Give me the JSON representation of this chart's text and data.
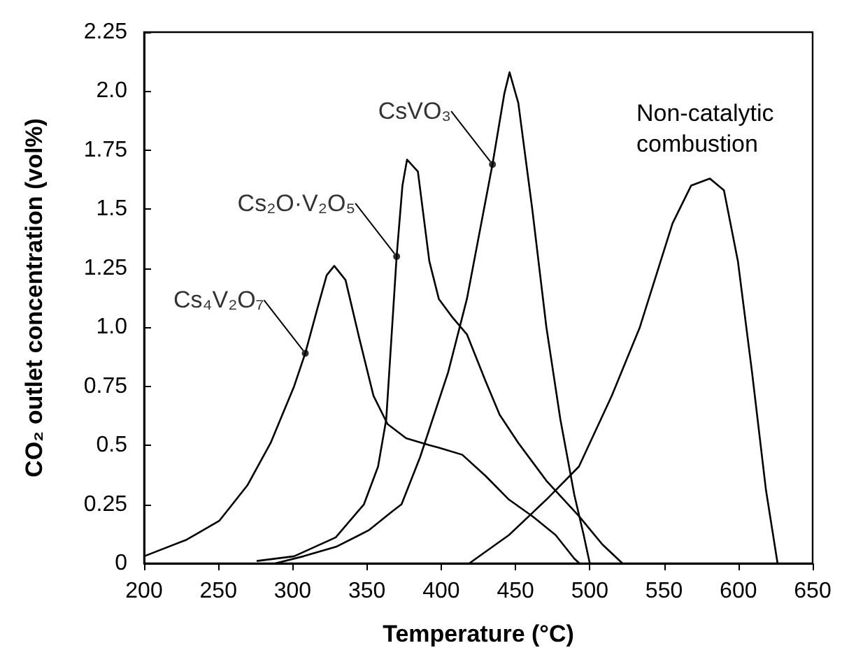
{
  "chart_data": {
    "type": "line",
    "xlabel": "Temperature (°C)",
    "ylabel": "CO₂ outlet concentration (vol%)",
    "xlim": [
      200,
      650
    ],
    "xticks": [
      200,
      250,
      300,
      350,
      400,
      450,
      500,
      550,
      600,
      650
    ],
    "ylim": [
      0,
      2.25
    ],
    "yticks": [
      0,
      0.25,
      0.5,
      0.75,
      {
        "value": 1,
        "label": "1.0"
      },
      1.25,
      1.5,
      1.75,
      {
        "value": 2,
        "label": "2.0"
      },
      2.25
    ],
    "grid": false,
    "marker": "none",
    "line_style": "solid",
    "series": [
      {
        "color": "#000000",
        "x": [
          200,
          228.6,
          250.6,
          269.5,
          285.2,
          301,
          308.5,
          316.7,
          322.9,
          328,
          335.6,
          345,
          354.4,
          363.9,
          376.4,
          392.2,
          398.4,
          414.2,
          429.9,
          445.6,
          461.3,
          477,
          489.6,
          493
        ],
        "values": [
          0.03,
          0.1,
          0.18,
          0.33,
          0.51,
          0.75,
          0.89,
          1.08,
          1.22,
          1.26,
          1.2,
          0.95,
          0.71,
          0.59,
          0.53,
          0.5,
          0.49,
          0.46,
          0.37,
          0.27,
          0.2,
          0.12,
          0.02,
          0
        ]
      },
      {
        "color": "#000000",
        "x": [
          275.8,
          301,
          329,
          348,
          357.5,
          363,
          370,
          373.9,
          377,
          384.3,
          392,
          398.4,
          407.8,
          417.3,
          430,
          439.3,
          451.9,
          470.8,
          492.7,
          508.5,
          522
        ],
        "values": [
          0.01,
          0.03,
          0.11,
          0.25,
          0.41,
          0.61,
          1.3,
          1.6,
          1.71,
          1.66,
          1.28,
          1.12,
          1.04,
          0.97,
          0.77,
          0.63,
          0.51,
          0.35,
          0.2,
          0.08,
          0
        ]
      },
      {
        "color": "#000000",
        "x": [
          288.4,
          307.3,
          329.2,
          351.2,
          367,
          373.3,
          385.8,
          404.7,
          417.3,
          434.5,
          442.5,
          446,
          451.9,
          461.3,
          470.8,
          480.2,
          489.6,
          495.9,
          500
        ],
        "values": [
          0,
          0.03,
          0.07,
          0.14,
          0.22,
          0.25,
          0.45,
          0.81,
          1.12,
          1.69,
          1.99,
          2.08,
          1.95,
          1.5,
          1,
          0.61,
          0.29,
          0.12,
          0
        ]
      },
      {
        "color": "#000000",
        "x": [
          418.9,
          445.6,
          470.8,
          492.7,
          514.8,
          533.7,
          555.7,
          568.2,
          580.8,
          590.3,
          599.7,
          609.2,
          618.6,
          626.4
        ],
        "values": [
          0,
          0.12,
          0.27,
          0.41,
          0.71,
          1,
          1.44,
          1.6,
          1.63,
          1.58,
          1.28,
          0.81,
          0.31,
          0
        ]
      }
    ],
    "annotations": [
      {
        "text": "Cs₄V₂O₇",
        "x": 308.5,
        "y": 0.89
      },
      {
        "text": "Cs₂O·V₂O₅",
        "x": 370,
        "y": 1.3
      },
      {
        "text": "CsVO₃",
        "x": 434.5,
        "y": 1.69
      },
      "Non-catalytic\ncombustion"
    ]
  }
}
